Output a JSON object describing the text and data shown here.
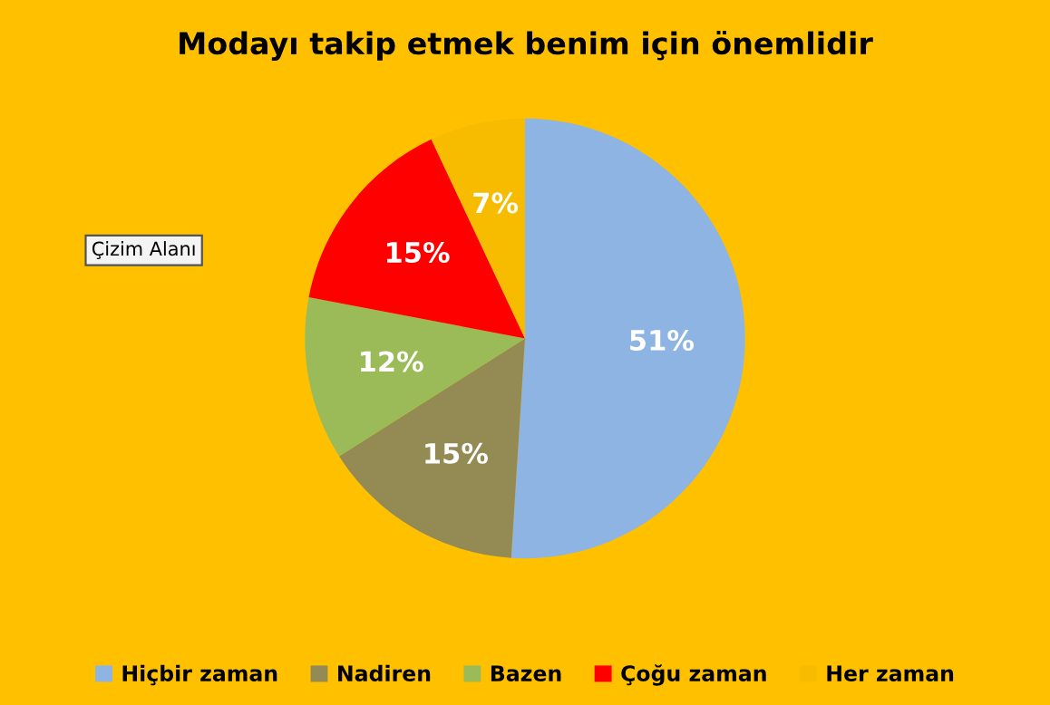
{
  "chart_data": {
    "type": "pie",
    "title": "Modayı takip etmek benim için önemlidir",
    "categories": [
      "Hiçbir zaman",
      "Nadiren",
      "Bazen",
      "Çoğu zaman",
      "Her zaman"
    ],
    "values": [
      51,
      15,
      12,
      15,
      7
    ],
    "colors": [
      "#8eb4e3",
      "#948a54",
      "#9bbb59",
      "#ff0000",
      "#f7bc00"
    ],
    "value_labels": [
      "51%",
      "15%",
      "12%",
      "15%",
      "7%"
    ],
    "legend": "bottom",
    "annotations": [
      "Çizim Alanı"
    ]
  }
}
